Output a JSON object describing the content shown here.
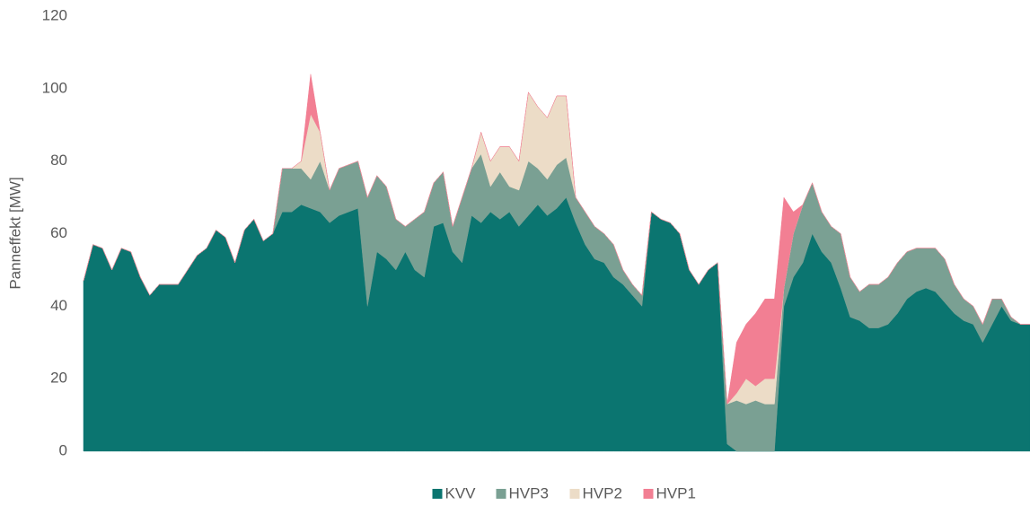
{
  "chart_data": {
    "type": "stacked_area",
    "y_label": "Panneffekt [MW]",
    "ylim": [
      0,
      120
    ],
    "yticks": [
      0,
      20,
      40,
      60,
      80,
      100,
      120
    ],
    "categories": [
      null,
      null,
      null,
      null,
      null,
      null,
      null,
      null,
      null,
      null,
      null,
      null,
      null,
      null,
      null,
      null,
      null,
      null,
      null,
      null,
      null,
      null,
      null,
      null,
      null,
      null,
      null,
      null,
      null,
      null,
      null,
      null,
      null,
      null,
      null,
      null,
      null,
      null,
      null,
      null,
      null,
      null,
      null,
      null,
      null,
      null,
      null,
      null,
      null,
      null,
      null,
      null,
      null,
      null,
      null,
      null,
      null,
      null,
      null,
      null,
      null,
      null,
      null,
      null,
      null,
      null,
      null,
      null,
      null,
      null,
      null,
      null,
      null,
      null,
      null,
      null,
      null,
      null,
      null,
      null,
      null,
      null,
      null,
      null,
      null,
      null,
      null,
      null,
      null,
      null,
      null,
      null,
      null,
      null,
      null,
      null,
      null,
      null,
      null,
      null,
      null
    ],
    "series": [
      {
        "name": "KVV",
        "color": "#0b7570",
        "values": [
          47,
          57,
          56,
          50,
          56,
          55,
          48,
          43,
          46,
          46,
          46,
          50,
          54,
          56,
          61,
          59,
          52,
          61,
          64,
          58,
          60,
          66,
          66,
          68,
          67,
          66,
          63,
          65,
          66,
          67,
          40,
          55,
          53,
          50,
          55,
          50,
          48,
          62,
          63,
          55,
          52,
          65,
          63,
          66,
          64,
          66,
          62,
          65,
          68,
          65,
          67,
          70,
          63,
          57,
          53,
          52,
          48,
          46,
          43,
          40,
          66,
          64,
          63,
          60,
          50,
          46,
          50,
          52,
          2,
          0,
          0,
          0,
          0,
          0,
          40,
          48,
          52,
          60,
          55,
          52,
          45,
          37,
          36,
          34,
          34,
          35,
          38,
          42,
          44,
          45,
          44,
          41,
          38,
          36,
          35,
          30,
          35,
          40,
          36,
          35,
          35
        ]
      },
      {
        "name": "HVP3",
        "color": "#7aa093",
        "values": [
          0,
          0,
          0,
          0,
          0,
          0,
          0,
          0,
          0,
          0,
          0,
          0,
          0,
          0,
          0,
          0,
          0,
          0,
          0,
          0,
          0,
          12,
          12,
          10,
          8,
          14,
          9,
          13,
          13,
          13,
          30,
          21,
          20,
          14,
          7,
          14,
          18,
          12,
          14,
          7,
          18,
          13,
          19,
          7,
          13,
          7,
          10,
          15,
          10,
          10,
          12,
          11,
          7,
          9,
          9,
          8,
          9,
          4,
          3,
          3,
          0,
          0,
          0,
          0,
          0,
          0,
          0,
          0,
          11,
          14,
          13,
          14,
          13,
          13,
          5,
          12,
          16,
          14,
          11,
          10,
          15,
          11,
          8,
          12,
          12,
          13,
          14,
          13,
          12,
          11,
          12,
          12,
          8,
          6,
          5,
          5,
          7,
          2,
          1,
          0,
          0
        ]
      },
      {
        "name": "HVP2",
        "color": "#ecdcc7",
        "values": [
          0,
          0,
          0,
          0,
          0,
          0,
          0,
          0,
          0,
          0,
          0,
          0,
          0,
          0,
          0,
          0,
          0,
          0,
          0,
          0,
          0,
          0,
          0,
          2,
          18,
          8,
          0,
          0,
          0,
          0,
          0,
          0,
          0,
          0,
          0,
          0,
          0,
          0,
          0,
          0,
          0,
          0,
          6,
          7,
          7,
          11,
          8,
          19,
          17,
          17,
          19,
          17,
          0,
          0,
          0,
          0,
          0,
          0,
          0,
          0,
          0,
          0,
          0,
          0,
          0,
          0,
          0,
          0,
          0,
          2,
          7,
          4,
          7,
          7,
          0,
          0,
          0,
          0,
          0,
          0,
          0,
          0,
          0,
          0,
          0,
          0,
          0,
          0,
          0,
          0,
          0,
          0,
          0,
          0,
          0,
          0,
          0,
          0,
          0,
          0,
          0
        ]
      },
      {
        "name": "HVP1",
        "color": "#f27f93",
        "values": [
          0,
          0,
          0,
          0,
          0,
          0,
          0,
          0,
          0,
          0,
          0,
          0,
          0,
          0,
          0,
          0,
          0,
          0,
          0,
          0,
          0,
          0,
          0,
          0,
          11,
          0,
          0,
          0,
          0,
          0,
          0,
          0,
          0,
          0,
          0,
          0,
          0,
          0,
          0,
          0,
          0,
          0,
          0,
          0,
          0,
          0,
          0,
          0,
          0,
          0,
          0,
          0,
          0,
          0,
          0,
          0,
          0,
          0,
          0,
          0,
          0,
          0,
          0,
          0,
          0,
          0,
          0,
          0,
          0,
          14,
          15,
          20,
          22,
          22,
          25,
          6,
          0,
          0,
          0,
          0,
          0,
          0,
          0,
          0,
          0,
          0,
          0,
          0,
          0,
          0,
          0,
          0,
          0,
          0,
          0,
          0,
          0,
          0,
          0,
          0,
          0
        ]
      }
    ]
  }
}
